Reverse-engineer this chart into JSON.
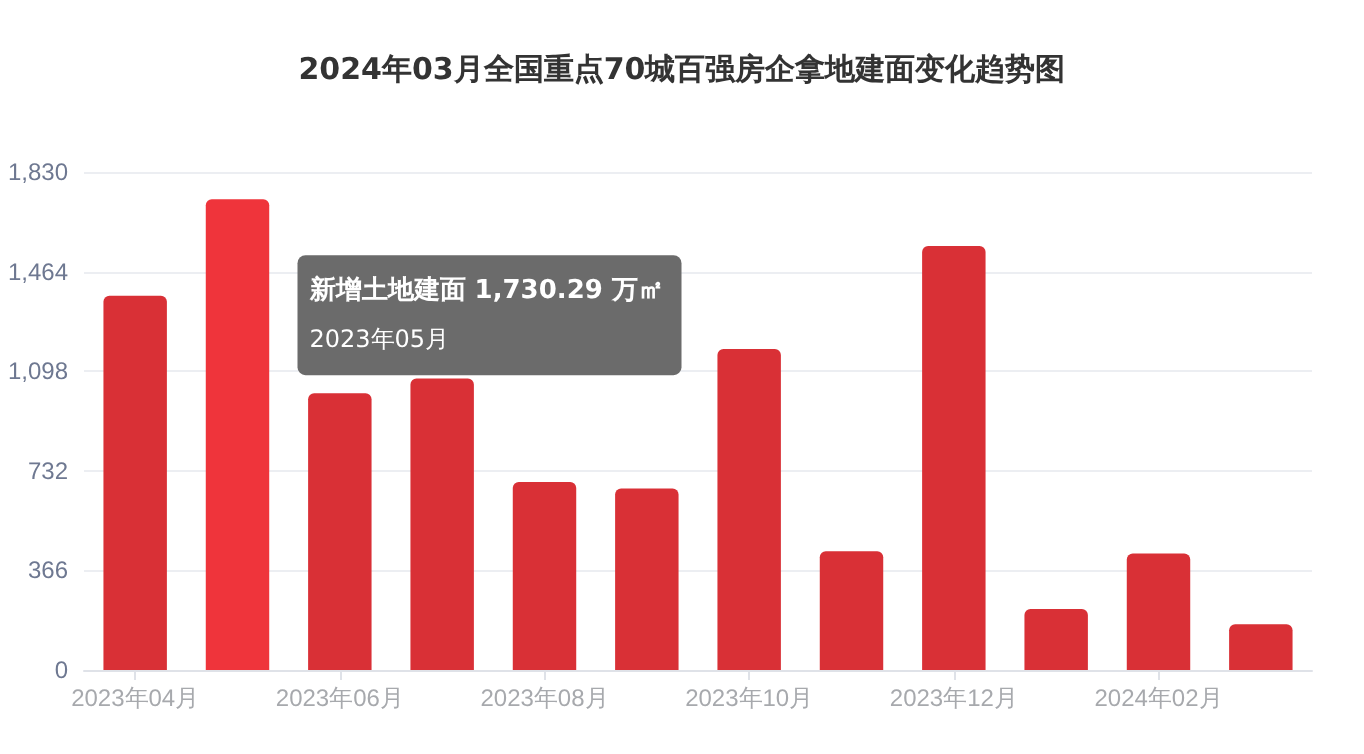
{
  "chart_data": {
    "type": "bar",
    "title": "2024年03月全国重点70城百强房企拿地建面变化趋势图",
    "categories": [
      "2023年04月",
      null,
      "2023年06月",
      null,
      "2023年08月",
      null,
      "2023年10月",
      null,
      "2023年12月",
      null,
      "2024年02月",
      null
    ],
    "values": [
      1375,
      1730.29,
      1017,
      1071,
      691,
      667,
      1180,
      436,
      1558,
      224,
      428,
      168
    ],
    "colors": [
      "#d93036",
      "#ef343b",
      "#d93036",
      "#d93036",
      "#d93036",
      "#d93036",
      "#d93036",
      "#d93036",
      "#d93036",
      "#d93036",
      "#d93036",
      "#d93036"
    ],
    "ylim": [
      0,
      1830
    ],
    "yticks": [
      0,
      366,
      732,
      {
        "value": 1098,
        "label": "1,098"
      },
      {
        "value": 1464,
        "label": "1,464"
      },
      {
        "value": 1830,
        "label": "1,830"
      }
    ],
    "grid": "y",
    "annotations": [
      "新增土地建面 1,730.29 万㎡",
      "2023年05月"
    ]
  }
}
